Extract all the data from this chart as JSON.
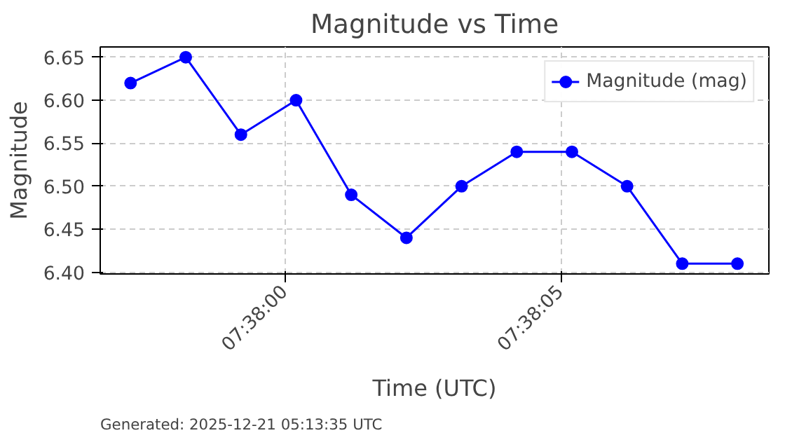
{
  "chart_data": {
    "type": "line",
    "title": "Magnitude vs Time",
    "xlabel": "Time (UTC)",
    "ylabel": "Magnitude",
    "x": [
      "2025-12-21T07:37:57.2",
      "2025-12-21T07:37:58.2",
      "2025-12-21T07:37:59.2",
      "2025-12-21T07:38:00.2",
      "2025-12-21T07:38:01.2",
      "2025-12-21T07:38:02.2",
      "2025-12-21T07:38:03.2",
      "2025-12-21T07:38:04.2",
      "2025-12-21T07:38:05.2",
      "2025-12-21T07:38:06.2",
      "2025-12-21T07:38:07.2",
      "2025-12-21T07:38:08.2"
    ],
    "series": [
      {
        "name": "Magnitude (mag)",
        "color": "#0000ff",
        "values": [
          6.62,
          6.65,
          6.56,
          6.6,
          6.49,
          6.44,
          6.5,
          6.54,
          6.54,
          6.5,
          6.41,
          6.41
        ]
      }
    ],
    "xlim": [
      "2025-12-21T07:37:56.65",
      "2025-12-21T07:38:08.77"
    ],
    "xticks": [
      {
        "value": "2025-12-21T07:38:00",
        "label": "07:38:00"
      },
      {
        "value": "2025-12-21T07:38:05",
        "label": "07:38:05"
      }
    ],
    "ylim": [
      6.398,
      6.662
    ],
    "yticks": [
      {
        "value": 6.4,
        "label": "6.40"
      },
      {
        "value": 6.45,
        "label": "6.45"
      },
      {
        "value": 6.5,
        "label": "6.50"
      },
      {
        "value": 6.55,
        "label": "6.55"
      },
      {
        "value": 6.6,
        "label": "6.60"
      },
      {
        "value": 6.65,
        "label": "6.65"
      }
    ],
    "grid": true,
    "legend": "top right",
    "marker": "circle",
    "line_style": "solid",
    "annotations": [
      "Generated: 2025-12-21 05:13:35 UTC"
    ]
  }
}
